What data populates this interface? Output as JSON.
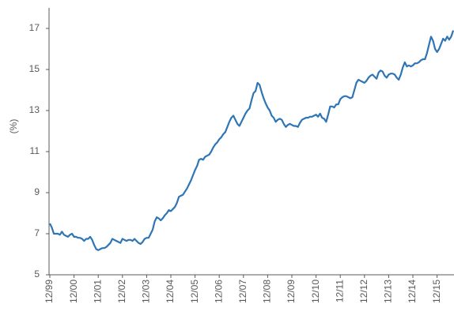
{
  "chart_data": {
    "type": "line",
    "y_label": "(%)",
    "categories": [
      "12/99",
      null,
      null,
      null,
      null,
      null,
      null,
      null,
      null,
      null,
      null,
      null,
      "12/00",
      null,
      null,
      null,
      null,
      null,
      null,
      null,
      null,
      null,
      null,
      null,
      "12/01",
      null,
      null,
      null,
      null,
      null,
      null,
      null,
      null,
      null,
      null,
      null,
      "12/02",
      null,
      null,
      null,
      null,
      null,
      null,
      null,
      null,
      null,
      null,
      null,
      "12/03",
      null,
      null,
      null,
      null,
      null,
      null,
      null,
      null,
      null,
      null,
      null,
      "12/04",
      null,
      null,
      null,
      null,
      null,
      null,
      null,
      null,
      null,
      null,
      null,
      "12/05",
      null,
      null,
      null,
      null,
      null,
      null,
      null,
      null,
      null,
      null,
      null,
      "12/06",
      null,
      null,
      null,
      null,
      null,
      null,
      null,
      null,
      null,
      null,
      null,
      "12/07",
      null,
      null,
      null,
      null,
      null,
      null,
      null,
      null,
      null,
      null,
      null,
      "12/08",
      null,
      null,
      null,
      null,
      null,
      null,
      null,
      null,
      null,
      null,
      null,
      "12/09",
      null,
      null,
      null,
      null,
      null,
      null,
      null,
      null,
      null,
      null,
      null,
      "12/10",
      null,
      null,
      null,
      null,
      null,
      null,
      null,
      null,
      null,
      null,
      null,
      "12/11",
      null,
      null,
      null,
      null,
      null,
      null,
      null,
      null,
      null,
      null,
      null,
      "12/12",
      null,
      null,
      null,
      null,
      null,
      null,
      null,
      null,
      null,
      null,
      null,
      "12/13",
      null,
      null,
      null,
      null,
      null,
      null,
      null,
      null,
      null,
      null,
      null,
      "12/14",
      null,
      null,
      null,
      null,
      null,
      null,
      null,
      null,
      null,
      null,
      null,
      "12/15",
      null,
      null,
      null,
      null,
      null,
      null,
      null,
      null
    ],
    "values": [
      7.5,
      7.3,
      7.0,
      7.0,
      7.0,
      6.95,
      7.1,
      6.95,
      6.9,
      6.85,
      6.95,
      7.0,
      6.85,
      6.85,
      6.8,
      6.8,
      6.75,
      6.65,
      6.75,
      6.75,
      6.85,
      6.7,
      6.45,
      6.25,
      6.2,
      6.25,
      6.3,
      6.3,
      6.35,
      6.45,
      6.55,
      6.75,
      6.7,
      6.65,
      6.6,
      6.55,
      6.75,
      6.7,
      6.65,
      6.7,
      6.7,
      6.65,
      6.75,
      6.65,
      6.55,
      6.5,
      6.6,
      6.75,
      6.8,
      6.8,
      7.0,
      7.2,
      7.6,
      7.8,
      7.75,
      7.65,
      7.75,
      7.9,
      8.0,
      8.15,
      8.1,
      8.2,
      8.3,
      8.5,
      8.8,
      8.85,
      8.9,
      9.05,
      9.2,
      9.4,
      9.6,
      9.85,
      10.1,
      10.3,
      10.6,
      10.65,
      10.6,
      10.75,
      10.8,
      10.85,
      11.0,
      11.2,
      11.35,
      11.45,
      11.6,
      11.7,
      11.85,
      11.95,
      12.2,
      12.45,
      12.65,
      12.75,
      12.55,
      12.35,
      12.25,
      12.45,
      12.65,
      12.85,
      13.0,
      13.1,
      13.5,
      13.85,
      13.95,
      14.35,
      14.25,
      13.9,
      13.6,
      13.35,
      13.15,
      13.0,
      12.75,
      12.65,
      12.45,
      12.55,
      12.6,
      12.55,
      12.35,
      12.2,
      12.3,
      12.35,
      12.3,
      12.25,
      12.25,
      12.2,
      12.4,
      12.55,
      12.6,
      12.65,
      12.65,
      12.7,
      12.7,
      12.75,
      12.8,
      12.7,
      12.85,
      12.65,
      12.6,
      12.45,
      12.8,
      13.2,
      13.2,
      13.15,
      13.3,
      13.3,
      13.55,
      13.65,
      13.7,
      13.7,
      13.65,
      13.6,
      13.65,
      14.0,
      14.35,
      14.5,
      14.45,
      14.4,
      14.35,
      14.45,
      14.6,
      14.7,
      14.75,
      14.65,
      14.55,
      14.85,
      14.95,
      14.9,
      14.7,
      14.6,
      14.75,
      14.8,
      14.8,
      14.75,
      14.6,
      14.5,
      14.75,
      15.1,
      15.35,
      15.15,
      15.2,
      15.15,
      15.2,
      15.3,
      15.3,
      15.35,
      15.45,
      15.5,
      15.5,
      15.8,
      16.2,
      16.6,
      16.4,
      16.0,
      15.85,
      16.0,
      16.25,
      16.5,
      16.4,
      16.6,
      16.45,
      16.6,
      16.9
    ],
    "color": "#2e75b6",
    "ylim": [
      5,
      18
    ],
    "yticks": [
      5,
      7,
      9,
      11,
      13,
      15,
      17
    ],
    "grid": false
  }
}
